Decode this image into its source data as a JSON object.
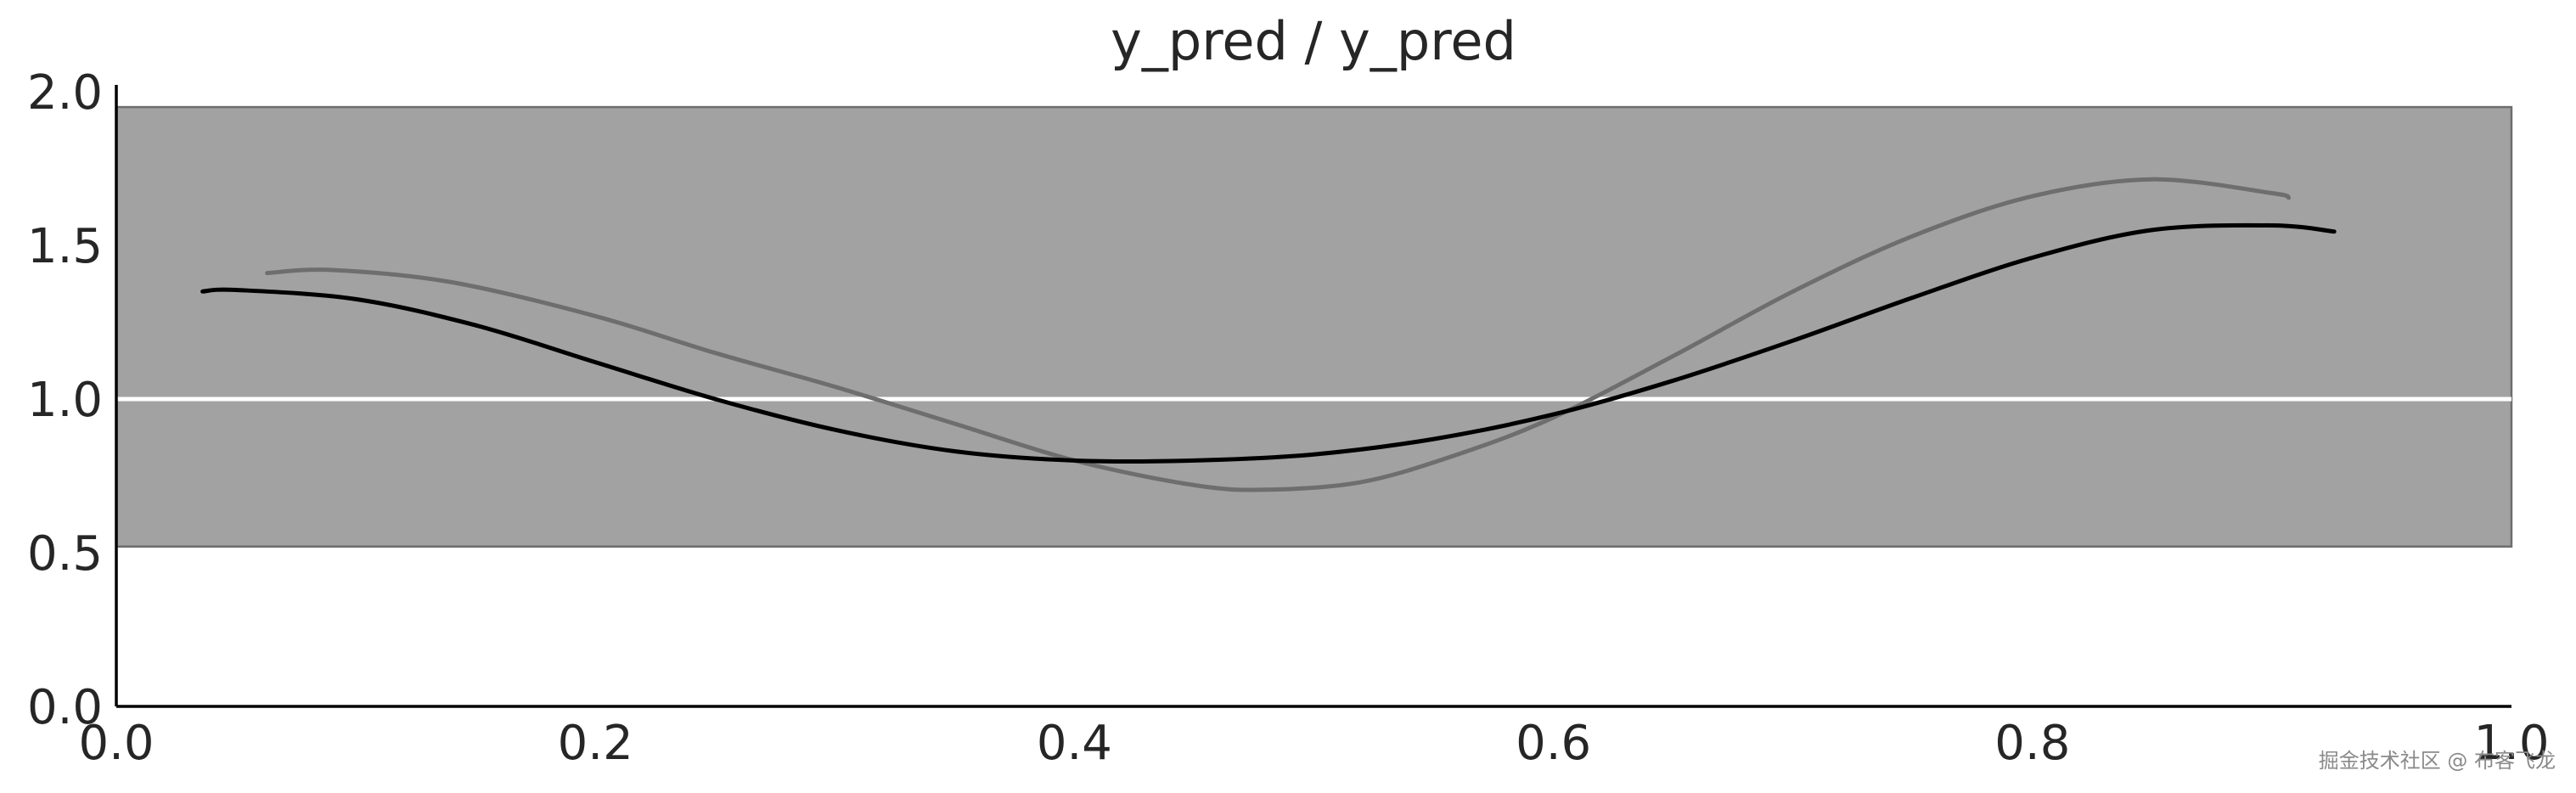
{
  "chart_data": {
    "type": "line",
    "title": "y_pred / y_pred",
    "xlabel": "",
    "ylabel": "",
    "xlim": [
      0.0,
      1.0
    ],
    "ylim": [
      0.0,
      2.0
    ],
    "x_ticks": [
      "0.0",
      "0.2",
      "0.4",
      "0.6",
      "0.8",
      "1.0"
    ],
    "y_ticks": [
      "0.0",
      "0.5",
      "1.0",
      "1.5",
      "2.0"
    ],
    "grid": false,
    "band": {
      "y_low": 0.52,
      "y_high": 1.95,
      "color": "#a2a2a2",
      "edge_color": "#6e6e6e"
    },
    "reference_line": {
      "y": 1.0,
      "color": "#ffffff"
    },
    "series": [
      {
        "color": "#000000",
        "x": [
          0.036,
          0.05,
          0.1,
          0.15,
          0.2,
          0.25,
          0.3,
          0.35,
          0.4,
          0.45,
          0.5,
          0.55,
          0.6,
          0.65,
          0.7,
          0.75,
          0.8,
          0.85,
          0.9,
          0.926
        ],
        "y": [
          1.35,
          1.355,
          1.325,
          1.24,
          1.12,
          1.0,
          0.9,
          0.83,
          0.8,
          0.8,
          0.82,
          0.87,
          0.95,
          1.06,
          1.19,
          1.33,
          1.46,
          1.55,
          1.565,
          1.545
        ]
      },
      {
        "color": "#6e6e6e",
        "x": [
          0.063,
          0.09,
          0.14,
          0.2,
          0.25,
          0.3,
          0.35,
          0.4,
          0.45,
          0.48,
          0.52,
          0.56,
          0.6,
          0.65,
          0.7,
          0.75,
          0.8,
          0.85,
          0.9,
          0.907
        ],
        "y": [
          1.41,
          1.42,
          1.38,
          1.27,
          1.15,
          1.04,
          0.92,
          0.8,
          0.72,
          0.705,
          0.73,
          0.82,
          0.94,
          1.14,
          1.35,
          1.53,
          1.66,
          1.715,
          1.67,
          1.655
        ]
      }
    ]
  },
  "watermark": "掘金技术社区 @ 布客飞龙"
}
